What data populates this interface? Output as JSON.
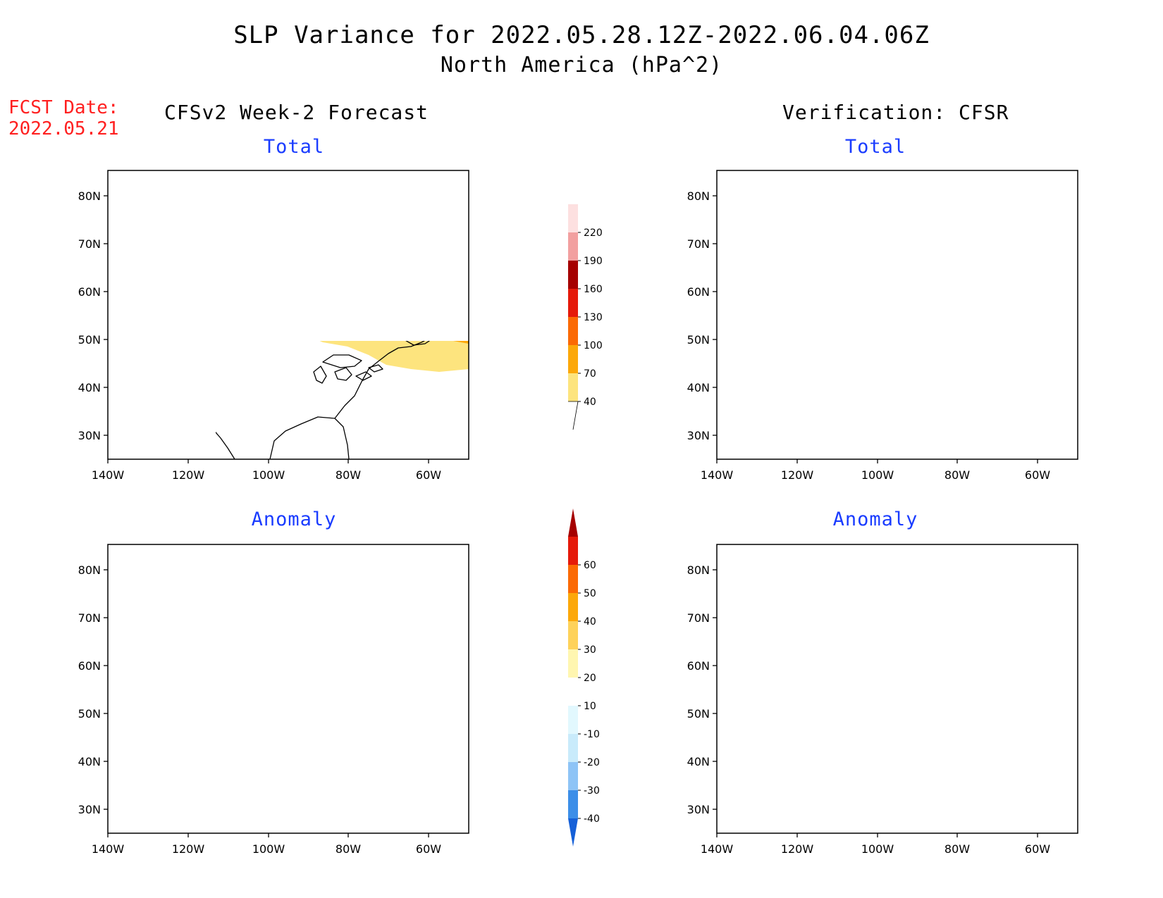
{
  "title": {
    "line1": "SLP Variance for 2022.05.28.12Z-2022.06.04.06Z",
    "line2": "North America (hPa^2)"
  },
  "fcst": {
    "label": "FCST Date:",
    "date": "2022.05.21"
  },
  "left_header": "CFSv2 Week-2 Forecast",
  "right_header": "Verification: CFSR",
  "panel_titles": {
    "total": "Total",
    "anomaly": "Anomaly"
  },
  "axes": {
    "lat_ticks": [
      "80N",
      "70N",
      "60N",
      "50N",
      "40N",
      "30N"
    ],
    "lon_ticks": [
      "140W",
      "120W",
      "100W",
      "80W",
      "60W"
    ]
  },
  "colorbars": {
    "total": {
      "labels": [
        "40",
        "70",
        "100",
        "130",
        "160",
        "190",
        "220"
      ],
      "colors": [
        "#fde47e",
        "#fca80a",
        "#fb6a04",
        "#e51a0a",
        "#a50000",
        "#f2a0a0",
        "#fde0e0"
      ]
    },
    "anomaly": {
      "labels": [
        "-40",
        "-30",
        "-20",
        "-10",
        "10",
        "20",
        "30",
        "40",
        "50",
        "60"
      ],
      "colors": [
        "#1560d8",
        "#3c8ee8",
        "#8ec4f6",
        "#c9ebfb",
        "#e2f8fe",
        "#ffffff",
        "#fff6b0",
        "#fed25a",
        "#fca80a",
        "#fb6a04",
        "#e51a0a",
        "#a50000"
      ]
    }
  }
}
